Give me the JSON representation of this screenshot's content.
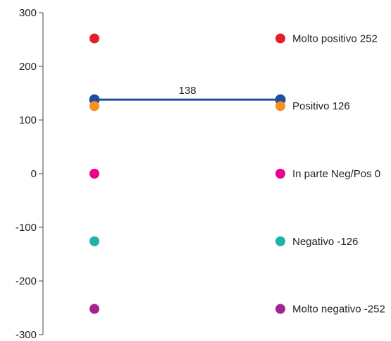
{
  "chart_data": {
    "type": "scatter",
    "title": "",
    "xlabel": "",
    "ylabel": "",
    "ylim": [
      -300,
      300
    ],
    "yticks": [
      "300",
      "200",
      "100",
      "0",
      "-100",
      "-200",
      "-300"
    ],
    "grid": false,
    "legend_position": "right",
    "series": [
      {
        "name": "Molto positivo 252",
        "value": 252,
        "color": "#e41f26"
      },
      {
        "name": "Positivo 126",
        "value": 126,
        "color": "#f7901e"
      },
      {
        "name": "In parte Neg/Pos 0",
        "value": 0,
        "color": "#ec008c"
      },
      {
        "name": "Negativo -126",
        "value": -126,
        "color": "#20b2aa"
      },
      {
        "name": "Molto negativo -252",
        "value": -252,
        "color": "#a0258f"
      }
    ],
    "reference_line": {
      "value": 138,
      "label": "138",
      "color": "#1f4e9c"
    }
  }
}
